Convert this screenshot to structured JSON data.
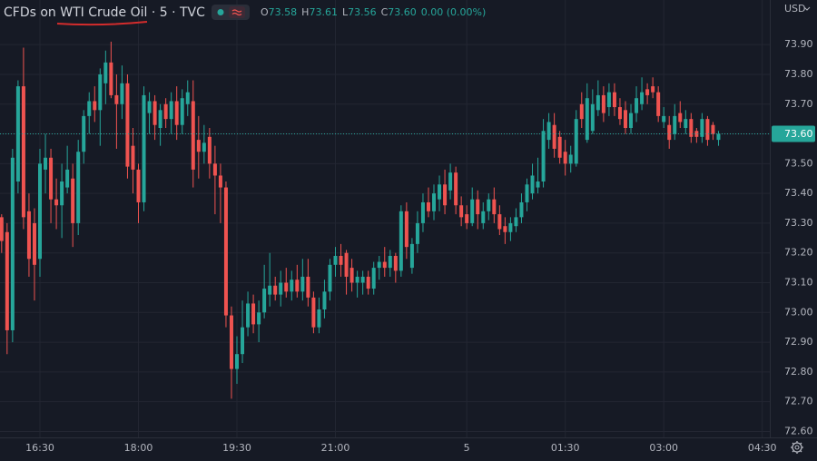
{
  "chart_data": {
    "type": "candlestick",
    "title": "CFDs on WTI Crude Oil · 5 · TVC",
    "ohlc_legend": [
      {
        "key": "O",
        "value": "73.58"
      },
      {
        "key": "H",
        "value": "73.61"
      },
      {
        "key": "L",
        "value": "73.56"
      },
      {
        "key": "C",
        "value": "73.60"
      }
    ],
    "change": "0.00 (0.00%)",
    "currency": "USD",
    "last_price": {
      "value": 73.6,
      "label": "73.60"
    },
    "up_color": "#26a69a",
    "down_color": "#ef5350",
    "grid": true,
    "ylim": [
      72.58,
      74.05
    ],
    "yticks": [
      {
        "value": 72.6,
        "label": "72.60"
      },
      {
        "value": 72.7,
        "label": "72.70"
      },
      {
        "value": 72.8,
        "label": "72.80"
      },
      {
        "value": 72.9,
        "label": "72.90"
      },
      {
        "value": 73.0,
        "label": "73.00"
      },
      {
        "value": 73.1,
        "label": "73.10"
      },
      {
        "value": 73.2,
        "label": "73.20"
      },
      {
        "value": 73.3,
        "label": "73.30"
      },
      {
        "value": 73.4,
        "label": "73.40"
      },
      {
        "value": 73.5,
        "label": "73.50"
      },
      {
        "value": 73.6,
        "label": "73.60"
      },
      {
        "value": 73.7,
        "label": "73.70"
      },
      {
        "value": 73.8,
        "label": "73.80"
      },
      {
        "value": 73.9,
        "label": "73.90"
      }
    ],
    "categories": [
      null,
      null,
      null,
      null,
      null,
      null,
      null,
      "16:30",
      null,
      null,
      null,
      null,
      null,
      null,
      null,
      null,
      null,
      null,
      null,
      null,
      null,
      null,
      null,
      null,
      null,
      "18:00",
      null,
      null,
      null,
      null,
      null,
      null,
      null,
      null,
      null,
      null,
      null,
      null,
      null,
      null,
      null,
      null,
      null,
      "19:30",
      null,
      null,
      null,
      null,
      null,
      null,
      null,
      null,
      null,
      null,
      null,
      null,
      null,
      null,
      null,
      null,
      null,
      "21:00",
      null,
      null,
      null,
      null,
      null,
      null,
      null,
      null,
      null,
      null,
      null,
      null,
      null,
      null,
      null,
      null,
      null,
      null,
      null,
      null,
      null,
      null,
      null,
      "5",
      null,
      null,
      null,
      null,
      null,
      null,
      null,
      null,
      null,
      null,
      null,
      null,
      null,
      null,
      null,
      null,
      null,
      "01:30",
      null,
      null,
      null,
      null,
      null,
      null,
      null,
      null,
      null,
      null,
      null,
      null,
      null,
      null,
      null,
      null,
      null,
      "03:00",
      null,
      null,
      null,
      null,
      null,
      null,
      null,
      null,
      null,
      null,
      null,
      null,
      null,
      null,
      null,
      null,
      null,
      "04:30"
    ],
    "open": [
      73.32,
      73.27,
      72.94,
      73.44,
      73.76,
      73.34,
      73.3,
      73.18,
      73.48,
      73.52,
      73.38,
      73.36,
      73.42,
      73.45,
      73.3,
      73.54,
      73.66,
      73.71,
      73.68,
      73.77,
      73.84,
      73.73,
      73.7,
      73.77,
      73.56,
      73.48,
      73.37,
      73.67,
      73.71,
      73.62,
      73.7,
      73.65,
      73.71,
      73.63,
      73.7,
      73.71,
      73.58,
      73.54,
      73.59,
      73.5,
      73.46,
      73.42,
      72.99,
      72.81,
      72.86,
      72.95,
      73.03,
      72.96,
      73.0,
      73.06,
      73.09,
      73.06,
      73.1,
      73.07,
      73.11,
      73.07,
      73.12,
      73.05,
      72.95,
      73.01,
      73.07,
      73.16,
      73.19,
      73.2,
      73.15,
      73.1,
      73.1,
      73.12,
      73.08,
      73.15,
      73.17,
      73.15,
      73.19,
      73.14,
      73.34,
      73.15,
      73.23,
      73.3,
      73.37,
      73.34,
      73.38,
      73.43,
      73.41,
      73.47,
      73.36,
      73.33,
      73.3,
      73.38,
      73.3,
      73.34,
      73.38,
      73.33,
      73.29,
      73.27,
      73.29,
      73.32,
      73.37,
      73.4,
      73.42,
      73.44,
      73.58,
      73.63,
      73.59,
      73.54,
      73.5,
      73.5,
      73.7,
      73.58,
      73.61,
      73.68,
      73.73,
      73.69,
      73.74,
      73.69,
      73.68,
      73.62,
      73.67,
      73.7,
      73.75,
      73.76,
      73.74,
      73.64,
      73.63,
      73.6,
      73.67,
      73.62,
      73.65,
      73.61,
      73.59,
      73.65,
      73.63,
      73.58,
      null,
      null,
      null,
      null,
      null,
      null,
      null,
      null
    ],
    "high": [
      73.33,
      73.3,
      73.55,
      73.78,
      73.89,
      73.4,
      73.35,
      73.55,
      73.6,
      73.55,
      73.45,
      73.5,
      73.56,
      73.5,
      73.58,
      73.68,
      73.74,
      73.76,
      73.82,
      73.88,
      73.91,
      73.8,
      73.83,
      73.8,
      73.62,
      73.5,
      73.76,
      73.74,
      73.73,
      73.7,
      73.72,
      73.74,
      73.76,
      73.75,
      73.78,
      73.78,
      73.66,
      73.63,
      73.62,
      73.56,
      73.5,
      73.44,
      73.02,
      72.92,
      73.04,
      73.07,
      73.06,
      73.04,
      73.16,
      73.2,
      73.12,
      73.14,
      73.15,
      73.14,
      73.16,
      73.18,
      73.18,
      73.07,
      73.05,
      73.11,
      73.18,
      73.22,
      73.23,
      73.21,
      73.18,
      73.14,
      73.14,
      73.14,
      73.17,
      73.19,
      73.22,
      73.21,
      73.2,
      73.36,
      73.37,
      73.25,
      73.34,
      73.4,
      73.42,
      73.43,
      73.46,
      73.48,
      73.5,
      73.49,
      73.39,
      73.36,
      73.42,
      73.41,
      73.37,
      73.4,
      73.42,
      73.36,
      73.32,
      73.32,
      73.35,
      73.4,
      73.45,
      73.5,
      73.52,
      73.65,
      73.67,
      73.67,
      73.61,
      73.58,
      73.56,
      73.68,
      73.74,
      73.77,
      73.75,
      73.78,
      73.76,
      73.77,
      73.77,
      73.72,
      73.71,
      73.7,
      73.76,
      73.79,
      73.77,
      73.79,
      73.76,
      73.69,
      73.66,
      73.7,
      73.71,
      73.68,
      73.67,
      73.62,
      73.67,
      73.66,
      73.64,
      73.61,
      null,
      null,
      null,
      null,
      null,
      null,
      null,
      null
    ],
    "low": [
      73.2,
      72.86,
      72.9,
      73.4,
      73.28,
      73.12,
      73.04,
      73.12,
      73.4,
      73.3,
      73.28,
      73.25,
      73.4,
      73.22,
      73.26,
      73.5,
      73.6,
      73.64,
      73.56,
      73.7,
      73.72,
      73.55,
      73.65,
      73.45,
      73.4,
      73.3,
      73.34,
      73.6,
      73.58,
      73.56,
      73.62,
      73.6,
      73.58,
      73.6,
      73.66,
      73.42,
      73.45,
      73.5,
      73.45,
      73.33,
      73.3,
      72.95,
      72.71,
      72.76,
      72.83,
      72.92,
      72.93,
      72.9,
      72.98,
      73.02,
      73.04,
      73.02,
      73.05,
      73.04,
      73.05,
      73.04,
      73.02,
      72.93,
      72.93,
      72.98,
      73.04,
      73.12,
      73.12,
      73.06,
      73.07,
      73.05,
      73.06,
      73.06,
      73.06,
      73.11,
      73.12,
      73.12,
      73.1,
      73.12,
      73.18,
      73.13,
      73.2,
      73.27,
      73.32,
      73.31,
      73.34,
      73.33,
      73.38,
      73.33,
      73.29,
      73.28,
      73.29,
      73.28,
      73.28,
      73.31,
      73.3,
      73.26,
      73.23,
      73.24,
      73.27,
      73.3,
      73.34,
      73.38,
      73.4,
      73.42,
      73.55,
      73.52,
      73.5,
      73.46,
      73.47,
      73.49,
      73.62,
      73.57,
      73.6,
      73.66,
      73.64,
      73.66,
      73.66,
      73.63,
      73.6,
      73.6,
      73.64,
      73.68,
      73.7,
      73.72,
      73.64,
      73.62,
      73.55,
      73.58,
      73.62,
      73.6,
      73.57,
      73.57,
      73.57,
      73.56,
      73.58,
      73.56,
      null,
      null,
      null,
      null,
      null,
      null,
      null,
      null
    ],
    "close": [
      73.24,
      72.94,
      73.52,
      73.76,
      73.32,
      73.18,
      73.16,
      73.5,
      73.52,
      73.38,
      73.36,
      73.44,
      73.48,
      73.3,
      73.54,
      73.66,
      73.71,
      73.68,
      73.8,
      73.84,
      73.73,
      73.7,
      73.77,
      73.49,
      73.48,
      73.37,
      73.73,
      73.71,
      73.63,
      73.68,
      73.65,
      73.71,
      73.63,
      73.72,
      73.74,
      73.48,
      73.54,
      73.57,
      73.5,
      73.46,
      73.42,
      72.99,
      72.81,
      72.86,
      72.95,
      73.03,
      72.96,
      73.0,
      73.08,
      73.09,
      73.06,
      73.1,
      73.07,
      73.11,
      73.07,
      73.12,
      73.05,
      72.95,
      73.01,
      73.07,
      73.16,
      73.19,
      73.16,
      73.12,
      73.1,
      73.12,
      73.12,
      73.08,
      73.15,
      73.17,
      73.15,
      73.19,
      73.14,
      73.34,
      73.22,
      73.23,
      73.3,
      73.37,
      73.34,
      73.4,
      73.43,
      73.36,
      73.47,
      73.36,
      73.32,
      73.3,
      73.38,
      73.33,
      73.34,
      73.38,
      73.33,
      73.28,
      73.27,
      73.3,
      73.32,
      73.37,
      73.43,
      73.46,
      73.44,
      73.61,
      73.64,
      73.55,
      73.52,
      73.5,
      73.53,
      73.65,
      73.65,
      73.72,
      73.7,
      73.73,
      73.67,
      73.74,
      73.69,
      73.65,
      73.62,
      73.67,
      73.72,
      73.74,
      73.73,
      73.74,
      73.66,
      73.66,
      73.58,
      73.66,
      73.64,
      73.65,
      73.59,
      73.59,
      73.65,
      73.58,
      73.6,
      73.6,
      null,
      null,
      null,
      null,
      null,
      null,
      null,
      null
    ]
  }
}
